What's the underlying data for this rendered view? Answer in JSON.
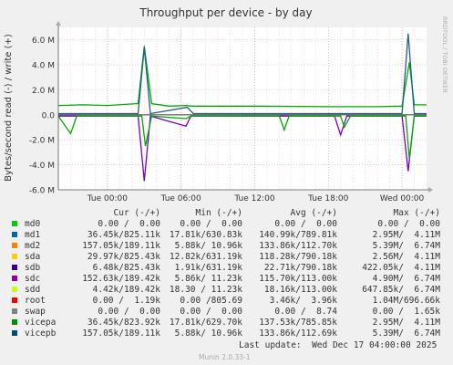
{
  "chart_data": {
    "type": "line",
    "title": "Throughput per device - by day",
    "ylabel": "Bytes/second read (-) / write (+)",
    "side_label": "RRDTOOL / TOBI OETIKER",
    "ylim": [
      -6.0,
      7.0
    ],
    "yticks": [
      {
        "value": 6,
        "label": "6.0 M"
      },
      {
        "value": 4,
        "label": "4.0 M"
      },
      {
        "value": 2,
        "label": "2.0 M"
      },
      {
        "value": 0,
        "label": "0.0"
      },
      {
        "value": -2,
        "label": "-2.0 M"
      },
      {
        "value": -4,
        "label": "-4.0 M"
      },
      {
        "value": -6,
        "label": "-6.0 M"
      }
    ],
    "xlim": [
      0,
      30
    ],
    "xticks": [
      {
        "value": 4,
        "label": "Tue 00:00"
      },
      {
        "value": 10,
        "label": "Tue 06:00"
      },
      {
        "value": 16,
        "label": "Tue 12:00"
      },
      {
        "value": 22,
        "label": "Tue 18:00"
      },
      {
        "value": 28,
        "label": "Wed 00:00"
      }
    ],
    "series": [
      {
        "name": "vicepa",
        "color": "#00aa00",
        "values": [
          [
            0,
            0.75
          ],
          [
            2,
            0.8
          ],
          [
            4,
            0.75
          ],
          [
            6.5,
            0.9
          ],
          [
            7.0,
            5.5
          ],
          [
            7.6,
            0.9
          ],
          [
            9,
            0.7
          ],
          [
            10.4,
            0.75
          ],
          [
            11,
            0.7
          ],
          [
            16,
            0.7
          ],
          [
            22,
            0.65
          ],
          [
            26,
            0.65
          ],
          [
            28,
            0.7
          ],
          [
            28.6,
            4.2
          ],
          [
            29,
            0.8
          ],
          [
            30,
            0.8
          ]
        ]
      },
      {
        "name": "vicepb",
        "color": "#235e80",
        "values": [
          [
            0,
            0.1
          ],
          [
            6.5,
            0.1
          ],
          [
            7.0,
            5.4
          ],
          [
            7.5,
            0.1
          ],
          [
            10.5,
            0.6
          ],
          [
            11,
            0.1
          ],
          [
            28,
            0.1
          ],
          [
            28.5,
            6.5
          ],
          [
            29,
            0.1
          ],
          [
            30,
            0.1
          ]
        ]
      },
      {
        "name": "sdc",
        "color": "#7A00C8",
        "values": [
          [
            0,
            -0.1
          ],
          [
            6.5,
            -0.1
          ],
          [
            7.0,
            -5.3
          ],
          [
            7.5,
            -0.1
          ],
          [
            10.4,
            -0.9
          ],
          [
            10.8,
            -0.1
          ],
          [
            22.5,
            -0.1
          ],
          [
            23,
            -1.6
          ],
          [
            23.5,
            -0.1
          ],
          [
            28,
            -0.1
          ],
          [
            28.5,
            -4.5
          ],
          [
            29,
            -0.1
          ],
          [
            30,
            -0.1
          ]
        ]
      },
      {
        "name": "vicepa",
        "color": "#00aa00",
        "values": [
          [
            0,
            -0.1
          ],
          [
            1,
            -1.5
          ],
          [
            1.5,
            -0.1
          ],
          [
            6.8,
            -0.1
          ],
          [
            7.1,
            -2.5
          ],
          [
            7.6,
            -0.1
          ],
          [
            10.4,
            -0.3
          ],
          [
            10.8,
            -0.1
          ],
          [
            18,
            -0.1
          ],
          [
            18.4,
            -1.2
          ],
          [
            18.8,
            -0.1
          ],
          [
            23,
            -0.1
          ],
          [
            23.3,
            -1.0
          ],
          [
            23.8,
            -0.1
          ],
          [
            28.3,
            -0.1
          ],
          [
            28.6,
            -3.5
          ],
          [
            29,
            -0.1
          ],
          [
            30,
            -0.1
          ]
        ]
      }
    ]
  },
  "legend": {
    "headers": {
      "cur": "Cur (-/+)",
      "min": "Min (-/+)",
      "avg": "Avg (-/+)",
      "max": "Max (-/+)"
    },
    "rows": [
      {
        "name": "md0",
        "color": "#00cc00",
        "cur": "0.00 /  0.00",
        "min": "0.00 /  0.00",
        "avg": "0.00 /  0.00",
        "max": "0.00 /  0.00"
      },
      {
        "name": "md1",
        "color": "#0066b3",
        "cur": "36.45k/825.11k",
        "min": "17.81k/630.83k",
        "avg": "140.99k/789.81k",
        "max": "2.95M/  4.11M"
      },
      {
        "name": "md2",
        "color": "#ff8000",
        "cur": "157.05k/189.11k",
        "min": "5.88k/ 10.96k",
        "avg": "133.86k/112.70k",
        "max": "5.39M/  6.74M"
      },
      {
        "name": "sda",
        "color": "#ffcc00",
        "cur": "29.97k/825.43k",
        "min": "12.82k/631.19k",
        "avg": "118.28k/790.18k",
        "max": "2.56M/  4.11M"
      },
      {
        "name": "sdb",
        "color": "#330099",
        "cur": "6.48k/825.43k",
        "min": "1.91k/631.19k",
        "avg": "22.71k/790.18k",
        "max": "422.05k/  4.11M"
      },
      {
        "name": "sdc",
        "color": "#990099",
        "cur": "152.63k/189.42k",
        "min": "5.86k/ 11.23k",
        "avg": "115.70k/113.00k",
        "max": "4.90M/  6.74M"
      },
      {
        "name": "sdd",
        "color": "#ccff00",
        "cur": "4.42k/189.42k",
        "min": "18.30 / 11.23k",
        "avg": "18.16k/113.00k",
        "max": "647.85k/  6.74M"
      },
      {
        "name": "root",
        "color": "#ff0000",
        "cur": "0.00 /  1.19k",
        "min": "0.00 /805.69",
        "avg": "3.46k/  3.96k",
        "max": "1.04M/696.66k"
      },
      {
        "name": "swap",
        "color": "#808080",
        "cur": "0.00 /  0.00",
        "min": "0.00 /  0.00",
        "avg": "0.00 /  8.74",
        "max": "0.00 /  1.65k"
      },
      {
        "name": "vicepa",
        "color": "#008f00",
        "cur": "36.45k/823.92k",
        "min": "17.81k/629.70k",
        "avg": "137.53k/785.85k",
        "max": "2.95M/  4.11M"
      },
      {
        "name": "vicepb",
        "color": "#00487d",
        "cur": "157.05k/189.11k",
        "min": "5.88k/ 10.96k",
        "avg": "133.86k/112.69k",
        "max": "5.39M/  6.74M"
      }
    ]
  },
  "footer": {
    "last_update": "Last update:  Wed Dec 17 04:00:00 2025",
    "munin": "Munin 2.0.33-1"
  }
}
